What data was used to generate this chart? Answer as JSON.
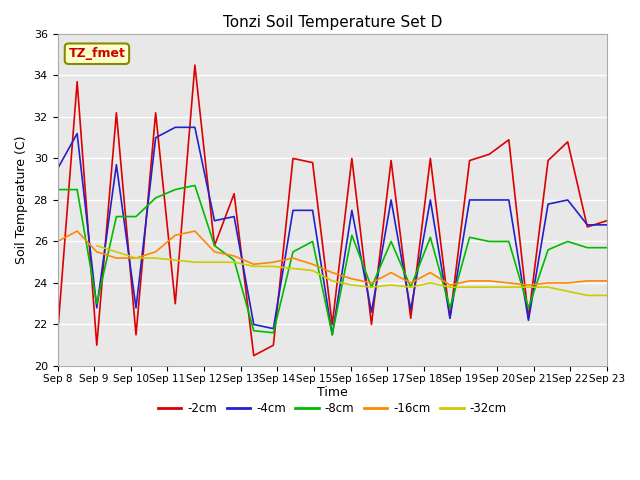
{
  "title": "Tonzi Soil Temperature Set D",
  "xlabel": "Time",
  "ylabel": "Soil Temperature (C)",
  "annotation_text": "TZ_fmet",
  "annotation_color": "#cc0000",
  "annotation_bg": "#ffffcc",
  "annotation_border": "#888800",
  "ylim": [
    20,
    36
  ],
  "x_tick_labels": [
    "Sep 8",
    "Sep 9",
    "Sep 10",
    "Sep 11",
    "Sep 12",
    "Sep 13",
    "Sep 14",
    "Sep 15",
    "Sep 16",
    "Sep 17",
    "Sep 18",
    "Sep 19",
    "Sep 20",
    "Sep 21",
    "Sep 22",
    "Sep 23"
  ],
  "series": {
    "-2cm": {
      "color": "#dd0000",
      "data": [
        21.5,
        33.7,
        21.0,
        32.2,
        21.5,
        32.2,
        23.0,
        34.5,
        25.8,
        28.3,
        20.5,
        21.0,
        30.0,
        29.8,
        22.0,
        30.0,
        22.0,
        29.9,
        22.3,
        30.0,
        22.3,
        29.9,
        30.2,
        30.9,
        22.3,
        29.9,
        30.8,
        26.7,
        27.0
      ]
    },
    "-4cm": {
      "color": "#2222cc",
      "data": [
        29.5,
        31.2,
        22.8,
        29.7,
        22.8,
        31.0,
        31.5,
        31.5,
        27.0,
        27.2,
        22.0,
        21.8,
        27.5,
        27.5,
        21.5,
        27.5,
        22.6,
        28.0,
        22.7,
        28.0,
        22.3,
        28.0,
        28.0,
        28.0,
        22.2,
        27.8,
        28.0,
        26.8,
        26.8
      ]
    },
    "-8cm": {
      "color": "#00bb00",
      "data": [
        28.5,
        28.5,
        23.0,
        27.2,
        27.2,
        28.1,
        28.5,
        28.7,
        25.8,
        25.1,
        21.7,
        21.6,
        25.5,
        26.0,
        21.5,
        26.3,
        23.8,
        26.0,
        23.8,
        26.2,
        22.8,
        26.2,
        26.0,
        26.0,
        22.8,
        25.6,
        26.0,
        25.7,
        25.7
      ]
    },
    "-16cm": {
      "color": "#ff8800",
      "data": [
        26.0,
        26.5,
        25.5,
        25.2,
        25.2,
        25.5,
        26.3,
        26.5,
        25.5,
        25.3,
        24.9,
        25.0,
        25.2,
        24.9,
        24.5,
        24.2,
        24.0,
        24.5,
        24.0,
        24.5,
        23.9,
        24.1,
        24.1,
        24.0,
        23.9,
        24.0,
        24.0,
        24.1,
        24.1
      ]
    },
    "-32cm": {
      "color": "#cccc00",
      "data": [
        null,
        null,
        25.8,
        25.5,
        25.2,
        25.2,
        25.1,
        25.0,
        25.0,
        25.0,
        24.8,
        24.8,
        24.7,
        24.6,
        24.1,
        23.9,
        23.8,
        23.9,
        23.8,
        24.0,
        23.8,
        23.8,
        23.8,
        23.8,
        23.8,
        23.8,
        23.6,
        23.4,
        23.4
      ]
    }
  },
  "background_color": "#e8e8e8",
  "grid_color": "#ffffff",
  "legend_order": [
    "-2cm",
    "-4cm",
    "-8cm",
    "-16cm",
    "-32cm"
  ]
}
